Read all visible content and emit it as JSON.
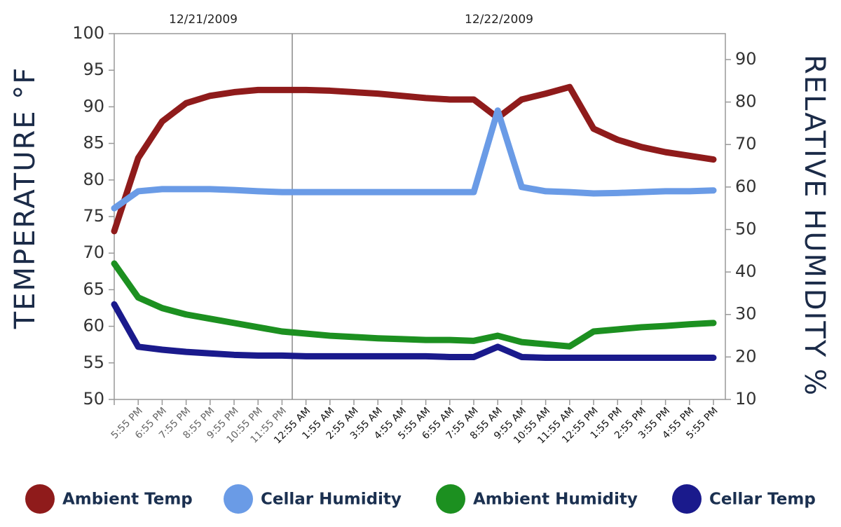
{
  "chart_data": {
    "type": "line",
    "annotations": [
      "12/21/2009",
      "12/22/2009"
    ],
    "ylabel": "TEMPERATURE  °F",
    "y2label": "RELATIVE HUMIDITY %",
    "categories": [
      null,
      "5:55 PM",
      "6:55 PM",
      "7:55 PM",
      "8:55 PM",
      "9:55 PM",
      "10:55 PM",
      "11:55 PM",
      "12:55 AM",
      "1:55 AM",
      "2:55 AM",
      "3:55 AM",
      "4:55 AM",
      "5:55 AM",
      "6:55 AM",
      "7:55 AM",
      "8:55 AM",
      "9:55 AM",
      "10:55 AM",
      "11:55 AM",
      "12:55 PM",
      "1:55 PM",
      "2:55 PM",
      "3:55 PM",
      "4:55 PM",
      "5:55 PM"
    ],
    "ylim": [
      50,
      100
    ],
    "yticks": [
      50,
      55,
      60,
      65,
      70,
      75,
      80,
      85,
      90,
      95,
      100
    ],
    "y2lim": [
      10,
      96.1
    ],
    "y2ticks": [
      10,
      20,
      30,
      40,
      50,
      60,
      70,
      80,
      90
    ],
    "series": [
      {
        "name": "Ambient Temp",
        "color": "#8f1b1b",
        "axis": "y",
        "values": [
          73,
          83,
          88,
          90.5,
          91.5,
          92,
          92.3,
          92.3,
          92.3,
          92.2,
          92,
          91.8,
          91.5,
          91.2,
          91,
          91,
          88.5,
          91,
          91.8,
          92.7,
          87,
          85.5,
          84.5,
          83.8,
          83.3,
          82.8
        ]
      },
      {
        "name": "Cellar Humidity",
        "color": "#6a9be6",
        "axis": "y2",
        "values": [
          55,
          59,
          59.5,
          59.5,
          59.5,
          59.3,
          59,
          58.8,
          58.8,
          58.8,
          58.8,
          58.8,
          58.8,
          58.8,
          58.8,
          58.8,
          78,
          60,
          59,
          58.8,
          58.5,
          58.6,
          58.8,
          59,
          59,
          59.2
        ]
      },
      {
        "name": "Ambient Humidity",
        "color": "#1c9020",
        "axis": "y2",
        "values": [
          42,
          34,
          31.5,
          30,
          29,
          28,
          27,
          26,
          25.5,
          25,
          24.7,
          24.4,
          24.2,
          24,
          24,
          23.8,
          25,
          23.5,
          23,
          22.5,
          26,
          26.5,
          27,
          27.3,
          27.7,
          28
        ]
      },
      {
        "name": "Cellar Temp",
        "color": "#1a1a8c",
        "axis": "y",
        "values": [
          63,
          57.2,
          56.8,
          56.5,
          56.3,
          56.1,
          56,
          56,
          55.9,
          55.9,
          55.9,
          55.9,
          55.9,
          55.9,
          55.8,
          55.8,
          57.2,
          55.8,
          55.7,
          55.7,
          55.7,
          55.7,
          55.7,
          55.7,
          55.7,
          55.7
        ]
      }
    ]
  }
}
